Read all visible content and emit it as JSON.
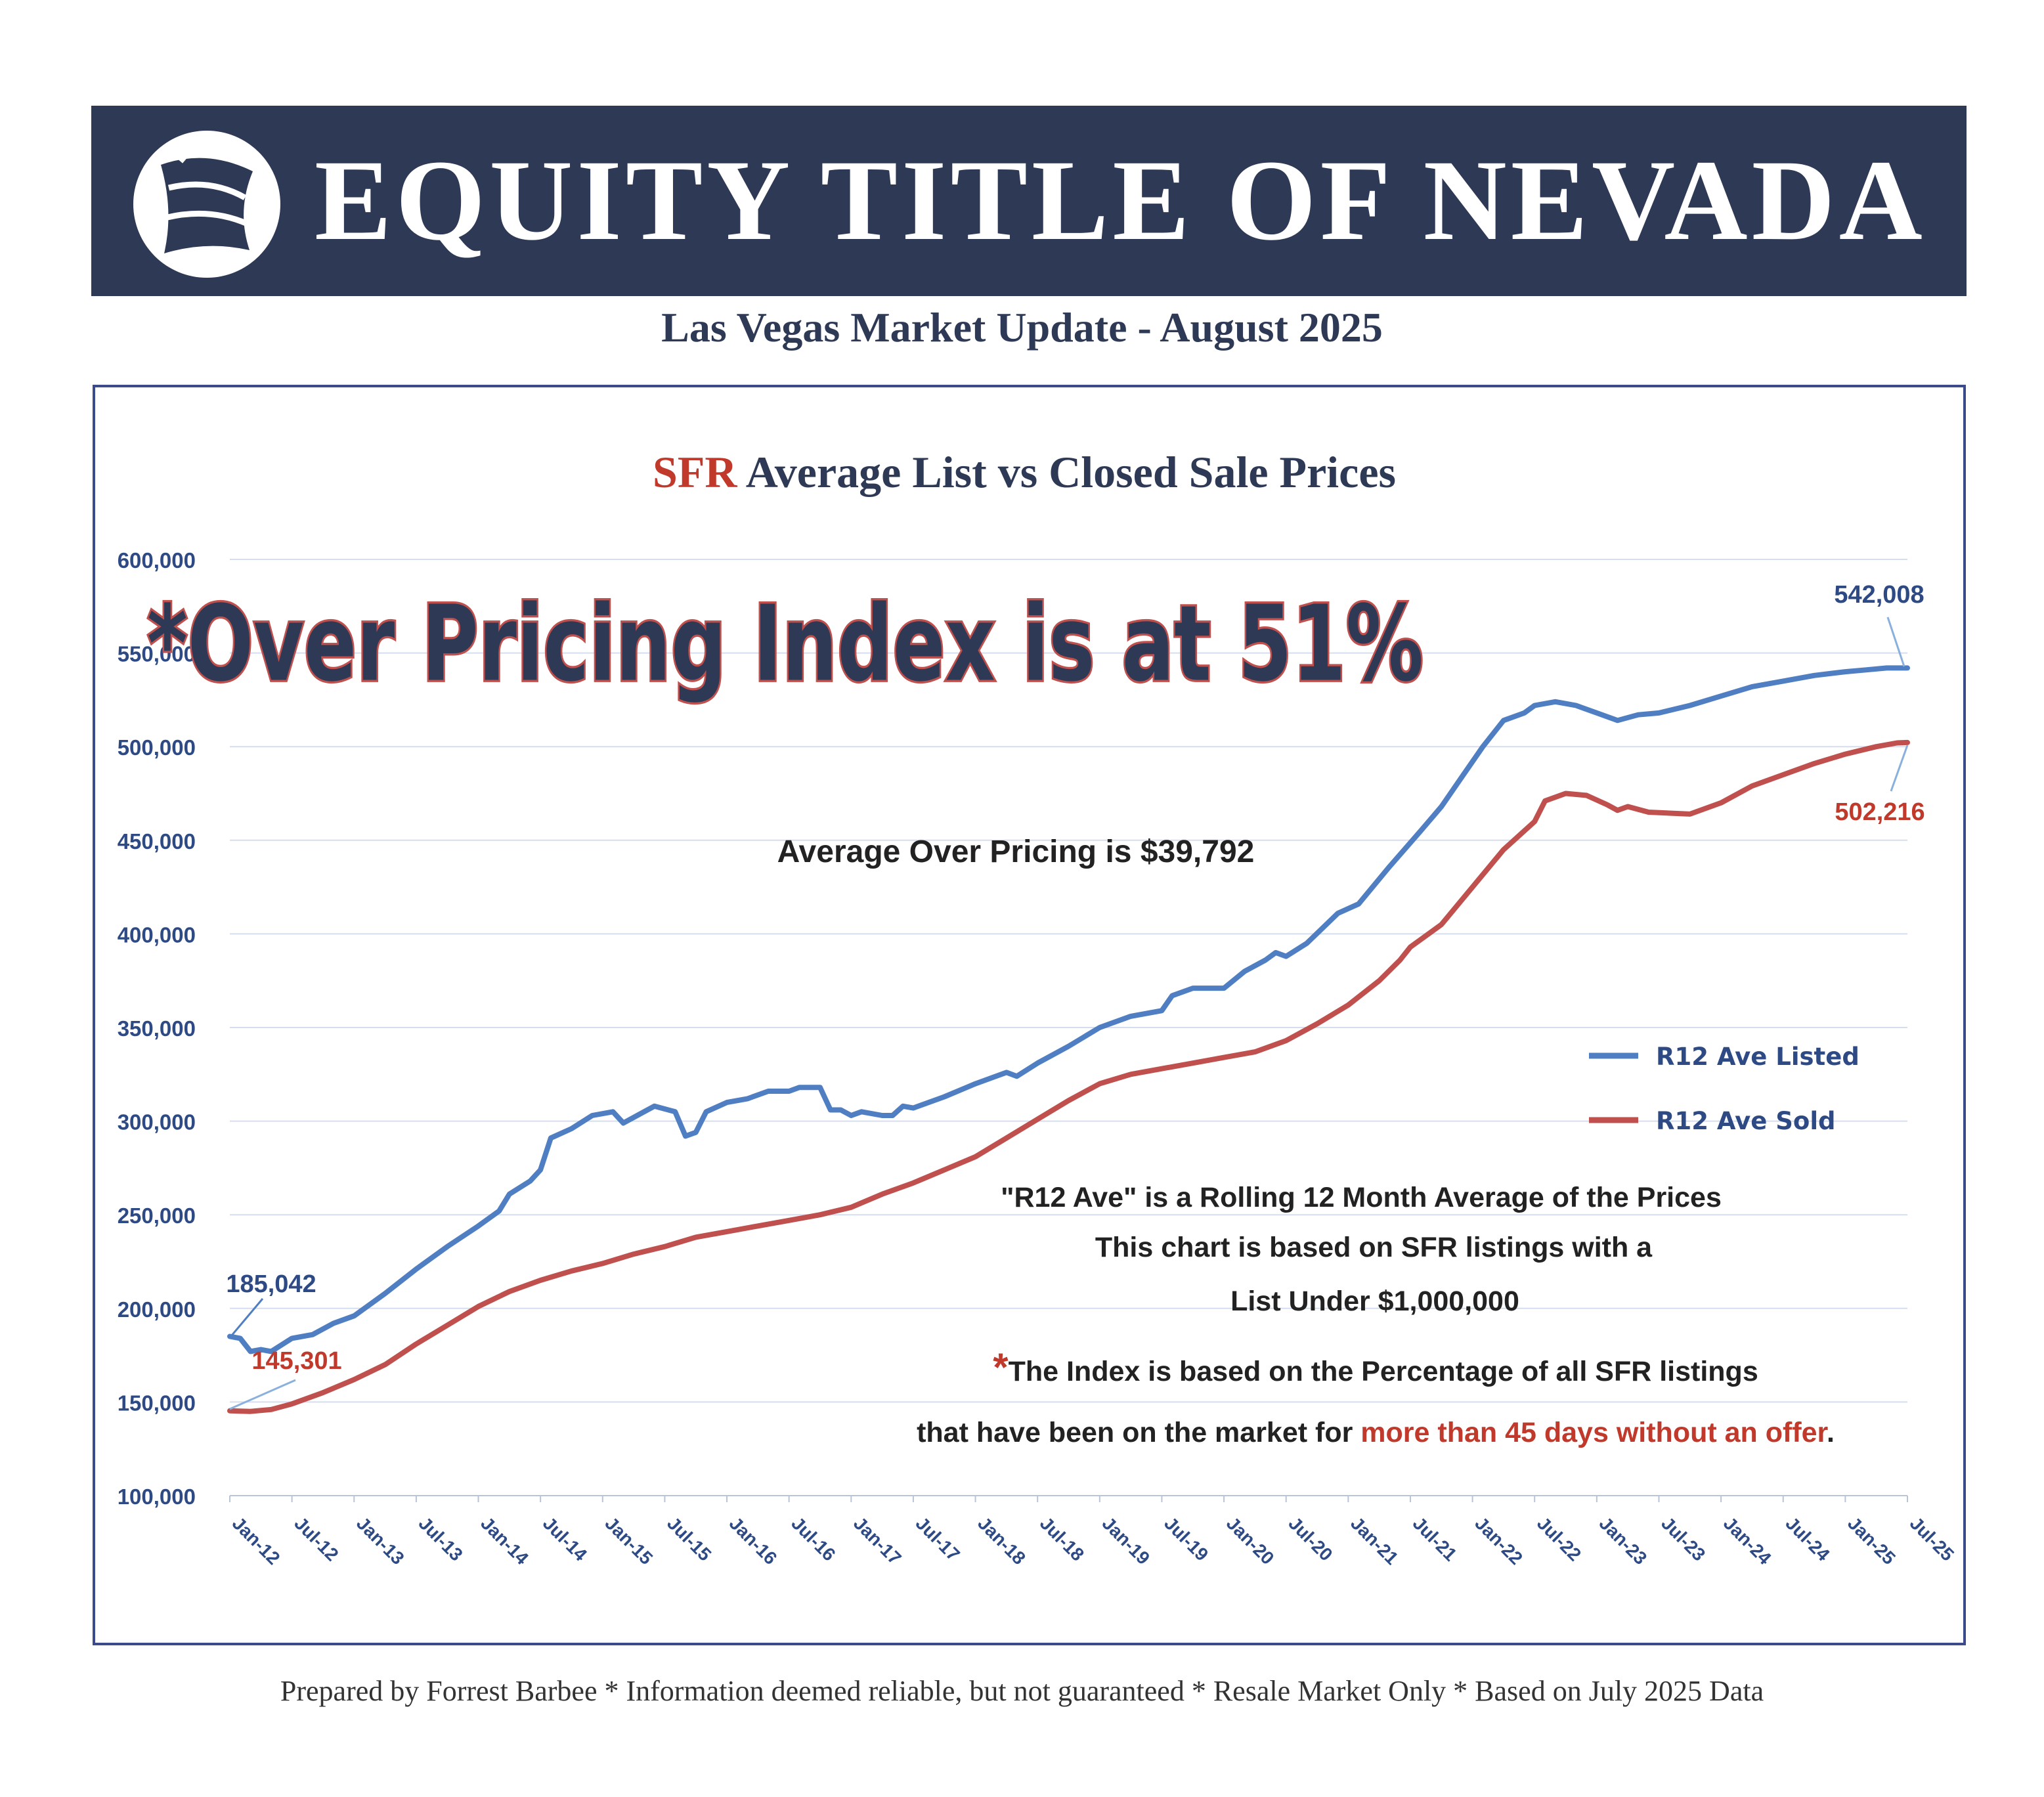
{
  "banner": {
    "brand": "EQUITY TITLE OF NEVADA"
  },
  "subtitle": "Las Vegas Market Update - August 2025",
  "footer": "Prepared by Forrest Barbee * Information deemed reliable, but not guaranteed * Resale Market Only * Based on July 2025 Data",
  "colors": {
    "navy": "#2e3a55",
    "listed": "#4f7fc2",
    "sold": "#c0504d",
    "red_text": "#c0392b",
    "axis_text": "#2e4a85"
  },
  "chart_data": {
    "type": "line",
    "title_prefix": "SFR",
    "title": "Average List vs Closed Sale Prices",
    "ylim": [
      100000,
      600000
    ],
    "y_ticks": [
      "100,000",
      "150,000",
      "200,000",
      "250,000",
      "300,000",
      "350,000",
      "400,000",
      "450,000",
      "500,000",
      "550,000",
      "600,000"
    ],
    "x_ticks": [
      "Jan-12",
      "Jul-12",
      "Jan-13",
      "Jul-13",
      "Jan-14",
      "Jul-14",
      "Jan-15",
      "Jul-15",
      "Jan-16",
      "Jul-16",
      "Jan-17",
      "Jul-17",
      "Jan-18",
      "Jul-18",
      "Jan-19",
      "Jul-19",
      "Jan-20",
      "Jul-20",
      "Jan-21",
      "Jul-21",
      "Jan-22",
      "Jul-22",
      "Jan-23",
      "Jul-23",
      "Jan-24",
      "Jul-24",
      "Jan-25",
      "Jul-25"
    ],
    "grid": true,
    "legend_position": "right",
    "series": [
      {
        "name": "R12 Ave Listed",
        "color": "#4f7fc2",
        "points": [
          [
            "Jan-12",
            185042
          ],
          [
            "Feb-12",
            184000
          ],
          [
            "Mar-12",
            177000
          ],
          [
            "Apr-12",
            178000
          ],
          [
            "May-12",
            177000
          ],
          [
            "Jul-12",
            184000
          ],
          [
            "Sep-12",
            186000
          ],
          [
            "Nov-12",
            192000
          ],
          [
            "Jan-13",
            196000
          ],
          [
            "Apr-13",
            208000
          ],
          [
            "Jul-13",
            221000
          ],
          [
            "Oct-13",
            233000
          ],
          [
            "Jan-14",
            244000
          ],
          [
            "Mar-14",
            252000
          ],
          [
            "Apr-14",
            261000
          ],
          [
            "Jun-14",
            268000
          ],
          [
            "Jul-14",
            274000
          ],
          [
            "Aug-14",
            291000
          ],
          [
            "Oct-14",
            296000
          ],
          [
            "Dec-14",
            303000
          ],
          [
            "Feb-15",
            305000
          ],
          [
            "Mar-15",
            299000
          ],
          [
            "May-15",
            305000
          ],
          [
            "Jun-15",
            308000
          ],
          [
            "Aug-15",
            305000
          ],
          [
            "Sep-15",
            292000
          ],
          [
            "Oct-15",
            294000
          ],
          [
            "Nov-15",
            305000
          ],
          [
            "Jan-16",
            310000
          ],
          [
            "Mar-16",
            312000
          ],
          [
            "May-16",
            316000
          ],
          [
            "Jul-16",
            316000
          ],
          [
            "Aug-16",
            318000
          ],
          [
            "Oct-16",
            318000
          ],
          [
            "Nov-16",
            306000
          ],
          [
            "Dec-16",
            306000
          ],
          [
            "Jan-17",
            303000
          ],
          [
            "Feb-17",
            305000
          ],
          [
            "Apr-17",
            303000
          ],
          [
            "May-17",
            303000
          ],
          [
            "Jun-17",
            308000
          ],
          [
            "Jul-17",
            307000
          ],
          [
            "Oct-17",
            313000
          ],
          [
            "Jan-18",
            320000
          ],
          [
            "Apr-18",
            326000
          ],
          [
            "May-18",
            324000
          ],
          [
            "Jul-18",
            331000
          ],
          [
            "Oct-18",
            340000
          ],
          [
            "Jan-19",
            350000
          ],
          [
            "Apr-19",
            356000
          ],
          [
            "Jul-19",
            359000
          ],
          [
            "Aug-19",
            367000
          ],
          [
            "Oct-19",
            371000
          ],
          [
            "Jan-20",
            371000
          ],
          [
            "Mar-20",
            380000
          ],
          [
            "May-20",
            386000
          ],
          [
            "Jun-20",
            390000
          ],
          [
            "Jul-20",
            388000
          ],
          [
            "Sep-20",
            395000
          ],
          [
            "Dec-20",
            411000
          ],
          [
            "Feb-21",
            416000
          ],
          [
            "May-21",
            436000
          ],
          [
            "Aug-21",
            455000
          ],
          [
            "Oct-21",
            468000
          ],
          [
            "Dec-21",
            484000
          ],
          [
            "Feb-22",
            500000
          ],
          [
            "Apr-22",
            514000
          ],
          [
            "Jun-22",
            518000
          ],
          [
            "Jul-22",
            522000
          ],
          [
            "Sep-22",
            524000
          ],
          [
            "Nov-22",
            522000
          ],
          [
            "Jan-23",
            518000
          ],
          [
            "Mar-23",
            514000
          ],
          [
            "May-23",
            517000
          ],
          [
            "Jul-23",
            518000
          ],
          [
            "Oct-23",
            522000
          ],
          [
            "Jan-24",
            527000
          ],
          [
            "Apr-24",
            532000
          ],
          [
            "Jul-24",
            535000
          ],
          [
            "Oct-24",
            538000
          ],
          [
            "Jan-25",
            540000
          ],
          [
            "Mar-25",
            541000
          ],
          [
            "May-25",
            542000
          ],
          [
            "Jul-25",
            542008
          ]
        ]
      },
      {
        "name": "R12 Ave Sold",
        "color": "#c0504d",
        "points": [
          [
            "Jan-12",
            145301
          ],
          [
            "Mar-12",
            145000
          ],
          [
            "May-12",
            146000
          ],
          [
            "Jul-12",
            149000
          ],
          [
            "Oct-12",
            155000
          ],
          [
            "Jan-13",
            162000
          ],
          [
            "Apr-13",
            170000
          ],
          [
            "Jul-13",
            181000
          ],
          [
            "Oct-13",
            191000
          ],
          [
            "Jan-14",
            201000
          ],
          [
            "Apr-14",
            209000
          ],
          [
            "Jul-14",
            215000
          ],
          [
            "Oct-14",
            220000
          ],
          [
            "Jan-15",
            224000
          ],
          [
            "Apr-15",
            229000
          ],
          [
            "Jul-15",
            233000
          ],
          [
            "Oct-15",
            238000
          ],
          [
            "Jan-16",
            241000
          ],
          [
            "Apr-16",
            244000
          ],
          [
            "Jul-16",
            247000
          ],
          [
            "Oct-16",
            250000
          ],
          [
            "Jan-17",
            254000
          ],
          [
            "Apr-17",
            261000
          ],
          [
            "Jul-17",
            267000
          ],
          [
            "Oct-17",
            274000
          ],
          [
            "Jan-18",
            281000
          ],
          [
            "Apr-18",
            291000
          ],
          [
            "Jul-18",
            301000
          ],
          [
            "Oct-18",
            311000
          ],
          [
            "Jan-19",
            320000
          ],
          [
            "Apr-19",
            325000
          ],
          [
            "Jul-19",
            328000
          ],
          [
            "Oct-19",
            331000
          ],
          [
            "Jan-20",
            334000
          ],
          [
            "Apr-20",
            337000
          ],
          [
            "Jul-20",
            343000
          ],
          [
            "Oct-20",
            352000
          ],
          [
            "Jan-21",
            362000
          ],
          [
            "Apr-21",
            375000
          ],
          [
            "Jun-21",
            386000
          ],
          [
            "Jul-21",
            393000
          ],
          [
            "Oct-21",
            405000
          ],
          [
            "Jan-22",
            425000
          ],
          [
            "Apr-22",
            445000
          ],
          [
            "Jul-22",
            460000
          ],
          [
            "Aug-22",
            471000
          ],
          [
            "Oct-22",
            475000
          ],
          [
            "Dec-22",
            474000
          ],
          [
            "Feb-23",
            469000
          ],
          [
            "Mar-23",
            466000
          ],
          [
            "Apr-23",
            468000
          ],
          [
            "Jun-23",
            465000
          ],
          [
            "Oct-23",
            464000
          ],
          [
            "Jan-24",
            470000
          ],
          [
            "Apr-24",
            479000
          ],
          [
            "Jul-24",
            485000
          ],
          [
            "Oct-24",
            491000
          ],
          [
            "Jan-25",
            496000
          ],
          [
            "Apr-25",
            500000
          ],
          [
            "Jun-25",
            502000
          ],
          [
            "Jul-25",
            502216
          ]
        ]
      }
    ],
    "data_labels": {
      "listed_start": "185,042",
      "sold_start": "145,301",
      "listed_end": "542,008",
      "sold_end": "502,216"
    },
    "annotations": {
      "headline": "*Over Pricing Index is at 51%",
      "average": "Average Over Pricing is $39,792",
      "note1": "\"R12 Ave\" is a Rolling 12 Month Average of the Prices",
      "note2": "This chart is based on SFR listings with a",
      "note3": "List Under $1,000,000",
      "note4_star": "*",
      "note4": "The Index is based on the Percentage of all SFR listings",
      "note5_a": "that have been on the market for ",
      "note5_b": "more than 45 days without an offer",
      "note5_c": "."
    }
  }
}
